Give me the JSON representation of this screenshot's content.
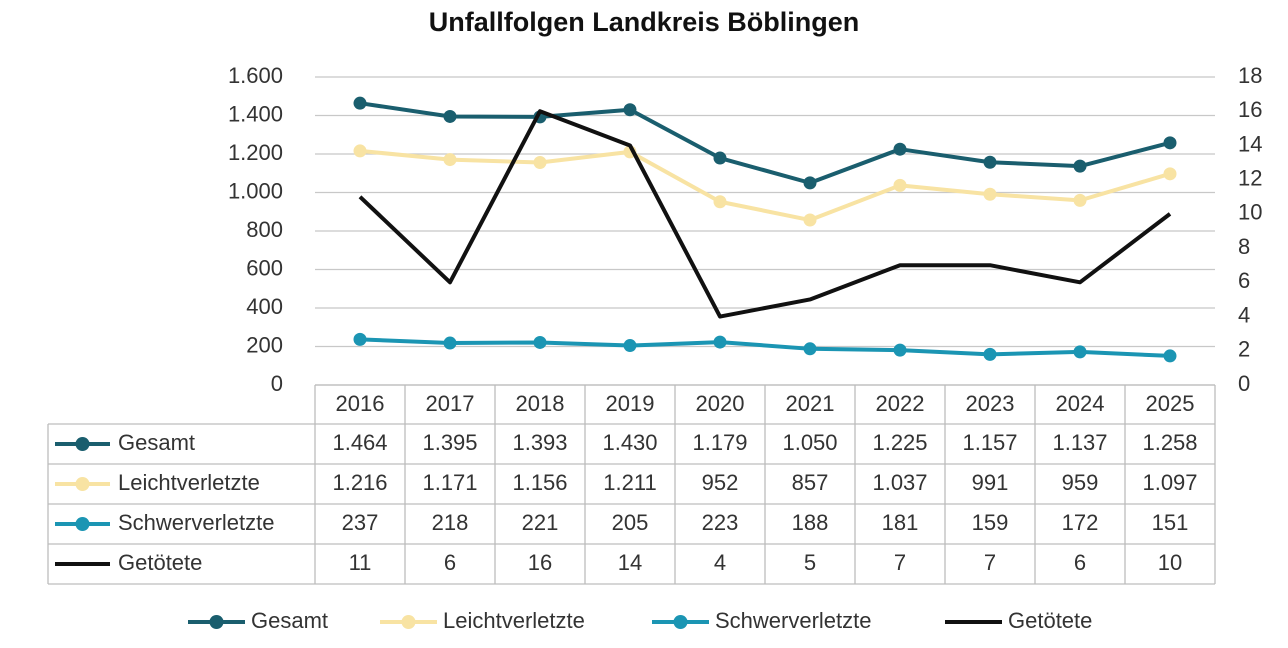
{
  "chart_data": {
    "type": "line",
    "title": "Unfallfolgen Landkreis Böblingen",
    "categories": [
      "2016",
      "2017",
      "2018",
      "2019",
      "2020",
      "2021",
      "2022",
      "2023",
      "2024",
      "2025"
    ],
    "series": [
      {
        "name": "Gesamt",
        "color": "#1a5e6e",
        "markers": true,
        "values": [
          1464,
          1395,
          1393,
          1430,
          1179,
          1050,
          1225,
          1157,
          1137,
          1258
        ],
        "value_labels": [
          "1.464",
          "1.395",
          "1.393",
          "1.430",
          "1.179",
          "1.050",
          "1.225",
          "1.157",
          "1.137",
          "1.258"
        ]
      },
      {
        "name": "Leichtverletzte",
        "color": "#f8e3a3",
        "markers": true,
        "values": [
          1216,
          1171,
          1156,
          1211,
          952,
          857,
          1037,
          991,
          959,
          1097
        ],
        "value_labels": [
          "1.216",
          "1.171",
          "1.156",
          "1.211",
          "952",
          "857",
          "1.037",
          "991",
          "959",
          "1.097"
        ]
      },
      {
        "name": "Schwerverletzte",
        "color": "#1b95b3",
        "markers": true,
        "values": [
          237,
          218,
          221,
          205,
          223,
          188,
          181,
          159,
          172,
          151
        ]
      },
      {
        "name": "Getötete",
        "color": "#111111",
        "markers": false,
        "axis": "y2",
        "values": [
          11,
          6,
          16,
          14,
          4,
          5,
          7,
          7,
          6,
          10
        ]
      }
    ],
    "ylim": [
      0,
      1600
    ],
    "yticks": [
      0,
      200,
      400,
      600,
      800,
      {
        "value": 1000,
        "label": "1.000"
      },
      {
        "value": 1200,
        "label": "1.200"
      },
      {
        "value": 1400,
        "label": "1.400"
      },
      {
        "value": 1600,
        "label": "1.600"
      }
    ],
    "y2lim": [
      0,
      18
    ],
    "y2ticks": [
      0,
      2,
      4,
      6,
      8,
      10,
      12,
      14,
      16,
      18
    ],
    "grid": true,
    "legend": "bottom",
    "data_table": true
  }
}
